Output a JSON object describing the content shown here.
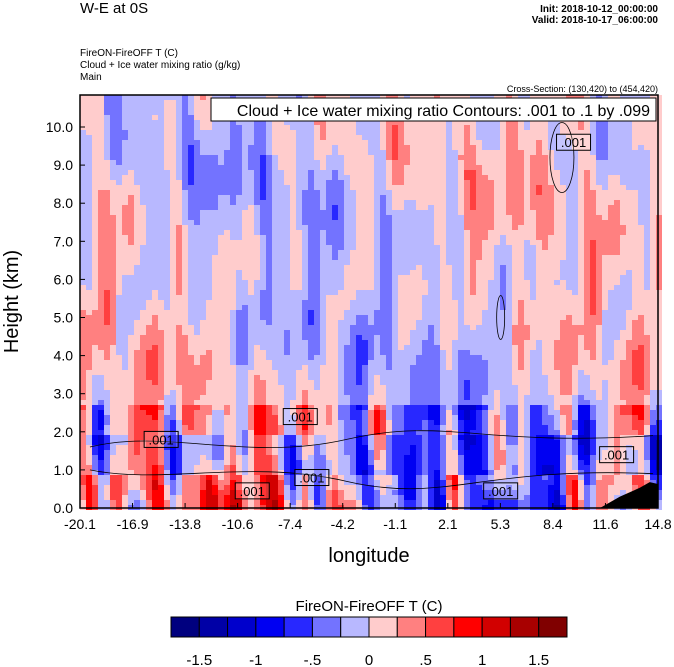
{
  "header": {
    "title": "W-E at 0S",
    "init": "Init: 2018-10-12_00:00:00",
    "valid": "Valid: 2018-10-17_06:00:00",
    "subtitle_lines": [
      "FireON-FireOFF T   (C)",
      "Cloud + Ice water mixing ratio   (g/kg)",
      "Main"
    ],
    "cross_section": "Cross-Section: (130,420) to (454,420)"
  },
  "chart_data": {
    "type": "heatmap",
    "title": "Cloud + Ice water mixing ratio Contours: .001 to .1 by .099",
    "xlabel": "longitude",
    "ylabel": "Height (km)",
    "xlim": [
      -20.1,
      14.8
    ],
    "ylim": [
      0,
      10.84
    ],
    "xticks": [
      "-20.1",
      "-16.9",
      "-13.8",
      "-10.6",
      "-7.4",
      "-4.2",
      "-1.1",
      "2.1",
      "5.3",
      "8.4",
      "11.6",
      "14.8"
    ],
    "yticks": [
      "0.0",
      "1.0",
      "2.0",
      "3.0",
      "4.0",
      "5.0",
      "6.0",
      "7.0",
      "8.0",
      "9.0",
      "10.0"
    ],
    "colorbar": {
      "title": "FireON-FireOFF T  (C)",
      "levels": [
        -1.5,
        -1.25,
        -1,
        -0.75,
        -0.5,
        -0.25,
        0,
        0.25,
        0.5,
        0.75,
        1,
        1.25,
        1.5
      ],
      "labels": [
        "-1.5",
        "-1",
        "-.5",
        "0",
        ".5",
        "1",
        "1.5"
      ],
      "colors": [
        "#00007f",
        "#0000a6",
        "#0000cc",
        "#0000f2",
        "#2828ff",
        "#7373ff",
        "#b8b8ff",
        "#ffcccc",
        "#ff8080",
        "#ff4040",
        "#ff0000",
        "#d20000",
        "#a80000",
        "#800000"
      ]
    },
    "contour_labels": [
      {
        "text": ".001",
        "lon": 9.7,
        "h": 9.6
      },
      {
        "text": ".001",
        "lon": -15.2,
        "h": 1.8
      },
      {
        "text": ".001",
        "lon": -6.8,
        "h": 2.4
      },
      {
        "text": ".001",
        "lon": -6.1,
        "h": 0.8
      },
      {
        "text": ".001",
        "lon": -9.7,
        "h": 0.45
      },
      {
        "text": ".001",
        "lon": 5.3,
        "h": 0.45
      },
      {
        "text": ".001",
        "lon": 12.3,
        "h": 1.4
      }
    ],
    "terrain": [
      [
        11.3,
        0
      ],
      [
        12.5,
        0.3
      ],
      [
        13.7,
        0.53
      ],
      [
        14.3,
        0.68
      ],
      [
        14.8,
        0.63
      ]
    ]
  }
}
